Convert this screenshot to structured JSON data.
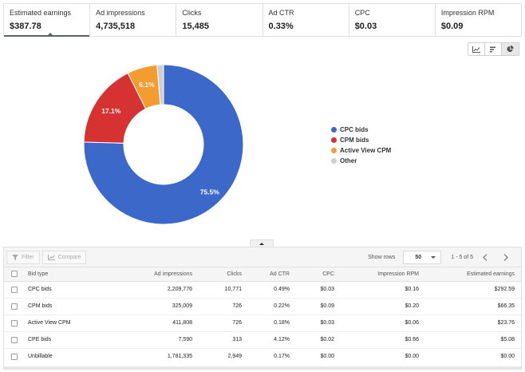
{
  "metrics": [
    {
      "label": "Estimated earnings",
      "value": "$387.78",
      "active": true
    },
    {
      "label": "Ad impressions",
      "value": "4,735,518"
    },
    {
      "label": "Clicks",
      "value": "15,485"
    },
    {
      "label": "Ad CTR",
      "value": "0.33%"
    },
    {
      "label": "CPC",
      "value": "$0.03"
    },
    {
      "label": "Impression RPM",
      "value": "$0.09"
    }
  ],
  "chart_toggle": {
    "icons": [
      "line-chart-icon",
      "bar-chart-icon",
      "pie-chart-icon"
    ],
    "selected": "pie-chart-icon"
  },
  "chart_data": {
    "type": "pie",
    "donut": true,
    "categories": [
      "CPC bids",
      "CPM bids",
      "Active View CPM",
      "Other"
    ],
    "values": [
      75.5,
      17.1,
      6.1,
      1.3
    ],
    "labels": [
      "75.5%",
      "17.1%",
      "6.1%",
      ""
    ],
    "colors": [
      "#3b68c9",
      "#d63231",
      "#f39c2f",
      "#cfcfcf"
    ],
    "legend_position": "right"
  },
  "toolbar": {
    "filter_label": "Filter",
    "compare_label": "Compare",
    "show_rows_label": "Show rows",
    "rows_value": "50",
    "range_label": "1 - 5 of 5"
  },
  "table": {
    "headers": [
      "Bid type",
      "Ad impressions",
      "Clicks",
      "Ad CTR",
      "CPC",
      "Impression RPM",
      "Estimated earnings"
    ],
    "rows": [
      [
        "CPC bids",
        "2,209,776",
        "10,771",
        "0.49%",
        "$0.03",
        "$0.16",
        "$292.59"
      ],
      [
        "CPM bids",
        "325,009",
        "726",
        "0.22%",
        "$0.09",
        "$0.20",
        "$66.35"
      ],
      [
        "Active View CPM",
        "411,808",
        "726",
        "0.18%",
        "$0.03",
        "$0.06",
        "$23.76"
      ],
      [
        "CPE bids",
        "7,590",
        "313",
        "4.12%",
        "$0.02",
        "$0.66",
        "$5.08"
      ],
      [
        "Unbillable",
        "1,781,335",
        "2,949",
        "0.17%",
        "$0.00",
        "$0.00",
        "$0.00"
      ]
    ]
  }
}
